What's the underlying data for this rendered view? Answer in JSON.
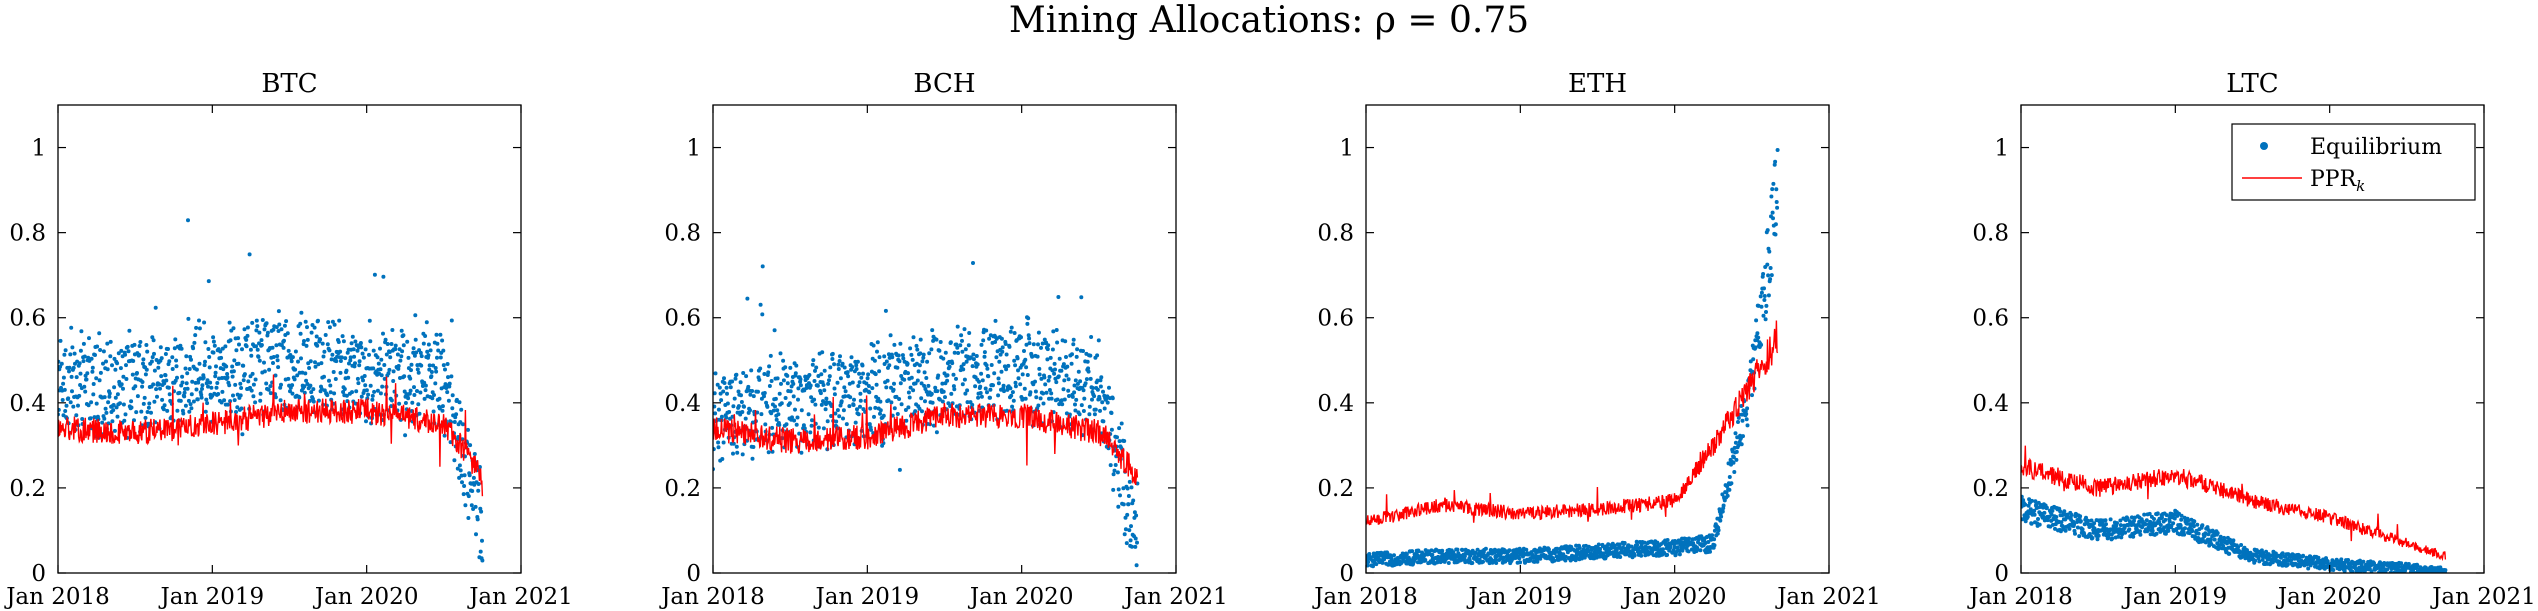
{
  "figure": {
    "title": "Mining Allocations: ρ = 0.75"
  },
  "chart_data": [
    {
      "type": "scatter",
      "title": "BTC",
      "x": [
        "2018-01",
        "2018-07",
        "2019-01",
        "2019-07",
        "2020-01",
        "2020-07",
        "2020-10"
      ],
      "xticks": [
        "Jan 2018",
        "Jan 2019",
        "Jan 2020",
        "Jan 2021"
      ],
      "ylim": [
        0,
        1.1
      ],
      "yticks": [
        "0",
        "0.2",
        "0.4",
        "0.6",
        "0.8",
        "1"
      ],
      "series": [
        {
          "name": "Equilibrium",
          "style": "dots",
          "values": [
            0.44,
            0.44,
            0.48,
            0.5,
            0.47,
            0.45,
            0.12
          ]
        },
        {
          "name": "PPR_k",
          "style": "line",
          "values": [
            0.34,
            0.33,
            0.35,
            0.38,
            0.38,
            0.35,
            0.23
          ]
        }
      ]
    },
    {
      "type": "scatter",
      "title": "BCH",
      "x": [
        "2018-01",
        "2018-07",
        "2019-01",
        "2019-07",
        "2020-01",
        "2020-07",
        "2020-10"
      ],
      "xticks": [
        "Jan 2018",
        "Jan 2019",
        "Jan 2020",
        "Jan 2021"
      ],
      "ylim": [
        0,
        1.1
      ],
      "yticks": [
        "0",
        "0.2",
        "0.4",
        "0.6",
        "0.8",
        "1"
      ],
      "series": [
        {
          "name": "Equilibrium",
          "style": "dots",
          "values": [
            0.36,
            0.4,
            0.42,
            0.46,
            0.48,
            0.44,
            0.1
          ]
        },
        {
          "name": "PPR_k",
          "style": "line",
          "values": [
            0.34,
            0.31,
            0.32,
            0.37,
            0.37,
            0.33,
            0.23
          ]
        }
      ]
    },
    {
      "type": "scatter",
      "title": "ETH",
      "x": [
        "2018-01",
        "2018-07",
        "2019-01",
        "2019-07",
        "2020-01",
        "2020-04",
        "2020-07",
        "2020-09"
      ],
      "xticks": [
        "Jan 2018",
        "Jan 2019",
        "Jan 2020",
        "Jan 2021"
      ],
      "ylim": [
        0,
        1.1
      ],
      "yticks": [
        "0",
        "0.2",
        "0.4",
        "0.6",
        "0.8",
        "1"
      ],
      "series": [
        {
          "name": "Equilibrium",
          "style": "dots",
          "values": [
            0.03,
            0.04,
            0.04,
            0.05,
            0.06,
            0.07,
            0.45,
            0.9
          ]
        },
        {
          "name": "PPR_k",
          "style": "line",
          "values": [
            0.12,
            0.16,
            0.14,
            0.15,
            0.17,
            0.3,
            0.45,
            0.55
          ]
        }
      ]
    },
    {
      "type": "scatter",
      "title": "LTC",
      "x": [
        "2018-01",
        "2018-07",
        "2019-01",
        "2019-07",
        "2020-01",
        "2020-07",
        "2020-10"
      ],
      "xticks": [
        "Jan 2018",
        "Jan 2019",
        "Jan 2020",
        "Jan 2021"
      ],
      "ylim": [
        0,
        1.1
      ],
      "yticks": [
        "0",
        "0.2",
        "0.4",
        "0.6",
        "0.8",
        "1"
      ],
      "legend": {
        "placement": "top-right",
        "entries": [
          "Equilibrium",
          "PPR"
        ],
        "subscript": "k"
      },
      "series": [
        {
          "name": "Equilibrium",
          "style": "dots",
          "values": [
            0.15,
            0.1,
            0.12,
            0.04,
            0.02,
            0.01,
            0.0
          ]
        },
        {
          "name": "PPR_k",
          "style": "line",
          "values": [
            0.25,
            0.2,
            0.23,
            0.17,
            0.13,
            0.07,
            0.04
          ]
        }
      ]
    }
  ],
  "colors": {
    "equilibrium": "#0072BD",
    "ppr": "#FF0000",
    "axis": "#000000"
  }
}
